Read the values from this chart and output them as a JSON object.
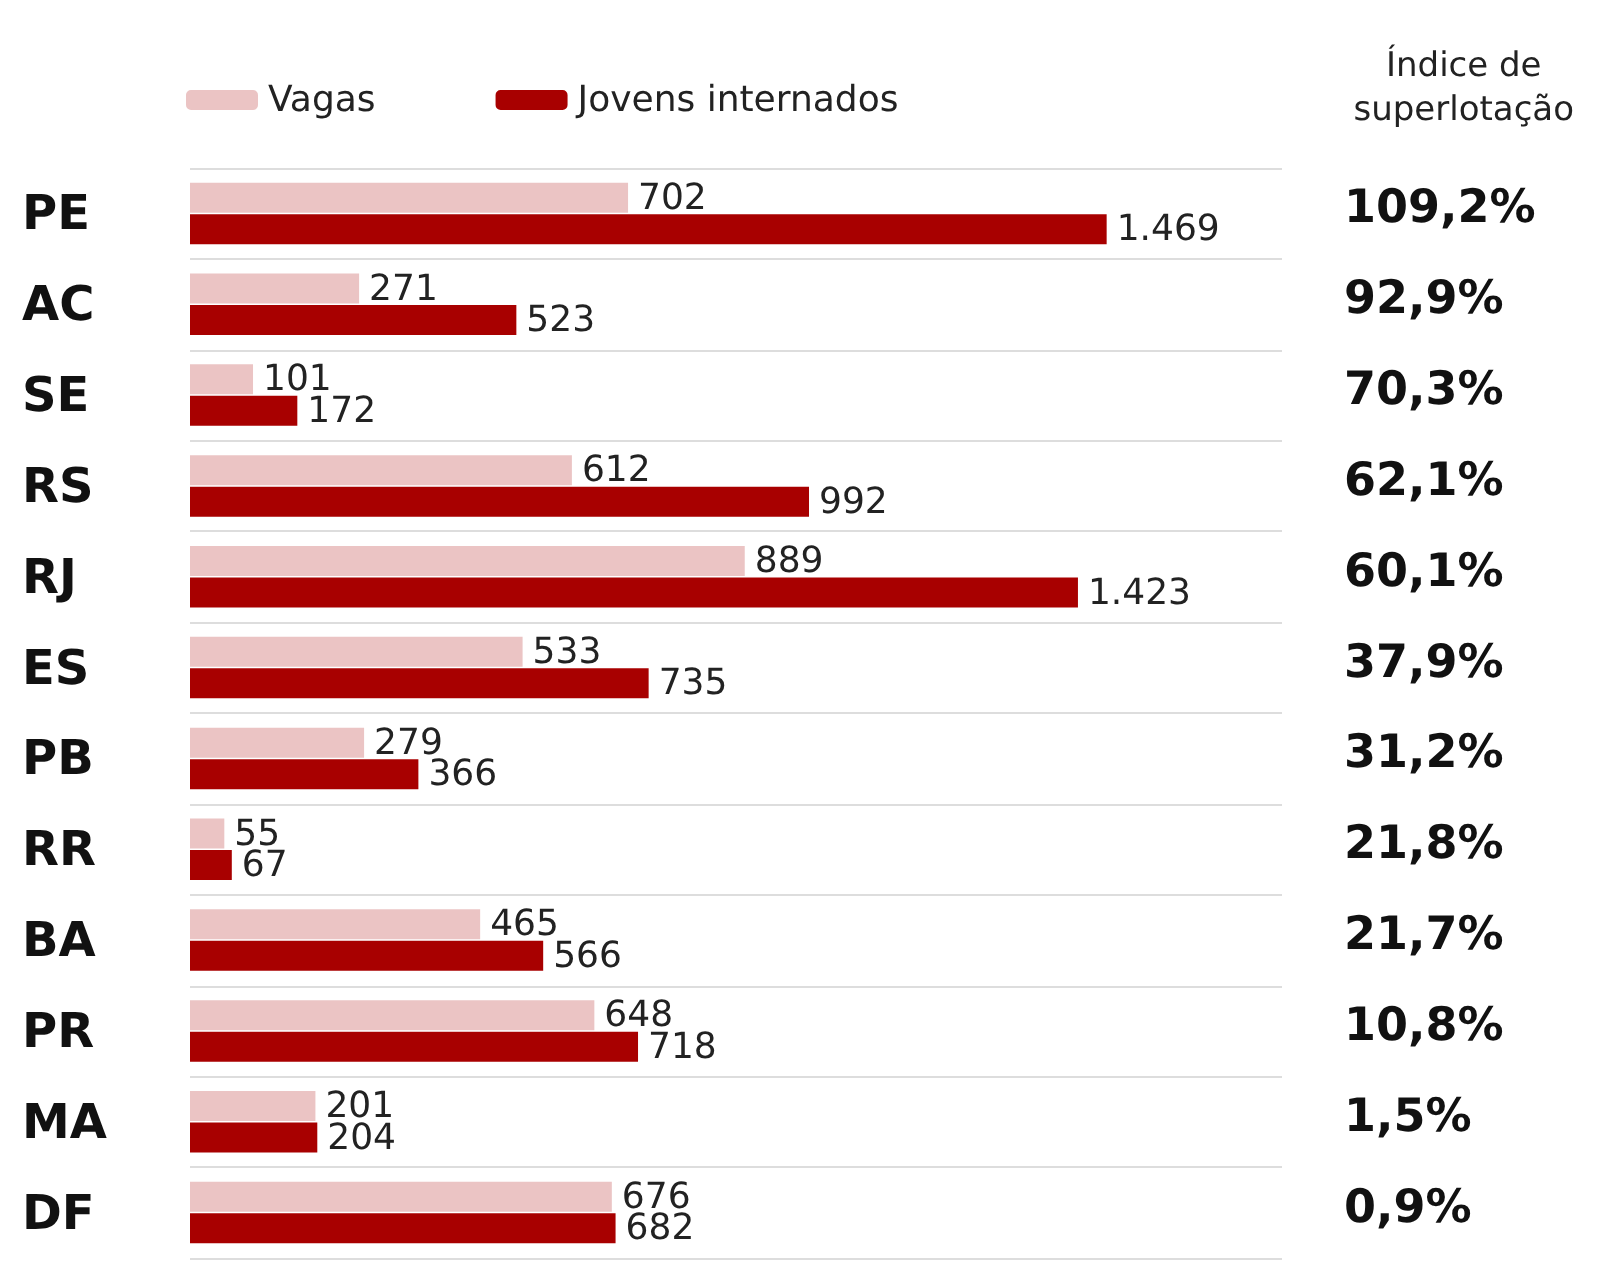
{
  "chart_data": {
    "type": "bar",
    "orientation": "horizontal",
    "categories": [
      "PE",
      "AC",
      "SE",
      "RS",
      "RJ",
      "ES",
      "PB",
      "RR",
      "BA",
      "PR",
      "MA",
      "DF"
    ],
    "series": [
      {
        "name": "Vagas",
        "color": "#ebc4c4",
        "values": [
          702,
          271,
          101,
          612,
          889,
          533,
          279,
          55,
          465,
          648,
          201,
          676
        ],
        "value_labels": [
          "702",
          "271",
          "101",
          "612",
          "889",
          "533",
          "279",
          "55",
          "465",
          "648",
          "201",
          "676"
        ]
      },
      {
        "name": "Jovens internados",
        "color": "#a80000",
        "values": [
          1469,
          523,
          172,
          992,
          1423,
          735,
          366,
          67,
          566,
          718,
          204,
          682
        ],
        "value_labels": [
          "1.469",
          "523",
          "172",
          "992",
          "1.423",
          "735",
          "366",
          "67",
          "566",
          "718",
          "204",
          "682"
        ]
      }
    ],
    "xlim": [
      0,
      1750
    ],
    "tick_labels": "y",
    "grid": "y",
    "legend": "top",
    "annotations": [
      "Índice de superlotação",
      "109,2%",
      "92,9%",
      "70,3%",
      "62,1%",
      "60,1%",
      "37,9%",
      "31,2%",
      "21,8%",
      "21,7%",
      "10,8%",
      "1,5%",
      "0,9%"
    ]
  }
}
